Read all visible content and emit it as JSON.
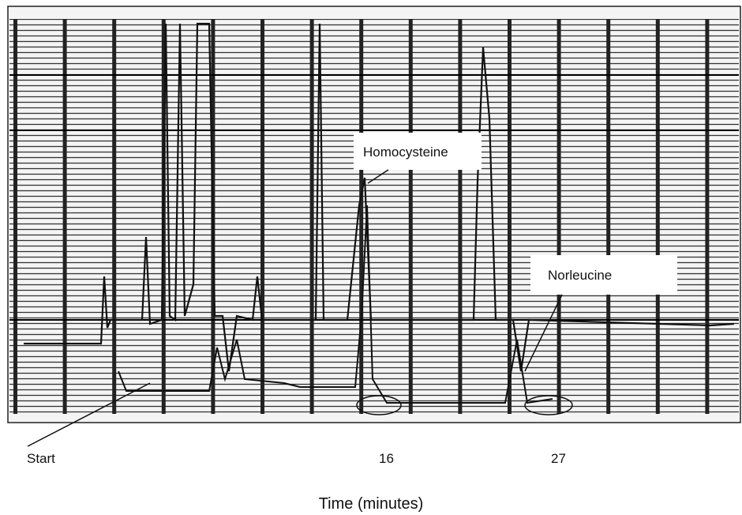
{
  "annotations": {
    "peak_1": "Homocysteine",
    "peak_2": "Norleucine"
  },
  "time_axis": {
    "start": "Start",
    "marks": [
      "16",
      "27"
    ],
    "title": "Time (minutes)"
  }
}
